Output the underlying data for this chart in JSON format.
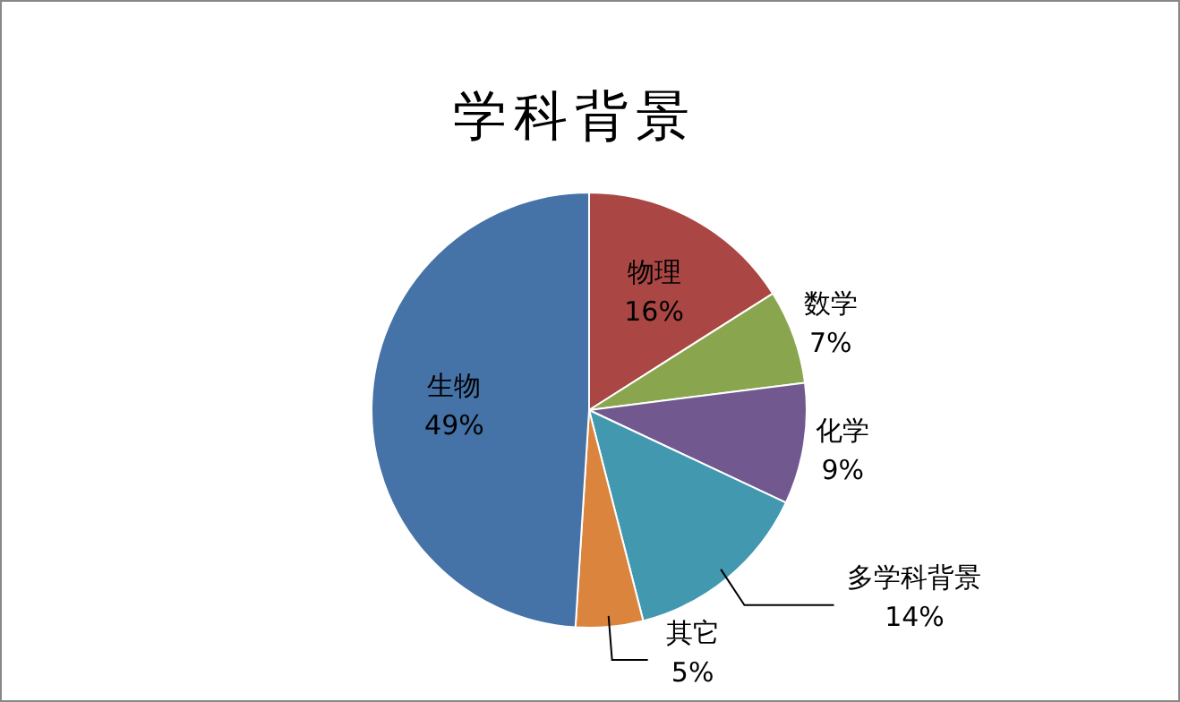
{
  "chart_data": {
    "type": "pie",
    "title": "学科背景",
    "categories": [
      "物理",
      "数学",
      "化学",
      "多学科背景",
      "其它",
      "生物"
    ],
    "values": [
      16,
      7,
      9,
      14,
      5,
      49
    ],
    "value_labels": [
      "16%",
      "7%",
      "9%",
      "14%",
      "5%",
      "49%"
    ],
    "colors": [
      "#aa4643",
      "#89a54e",
      "#71588f",
      "#4198af",
      "#db843d",
      "#4572a7"
    ],
    "legend": false
  }
}
